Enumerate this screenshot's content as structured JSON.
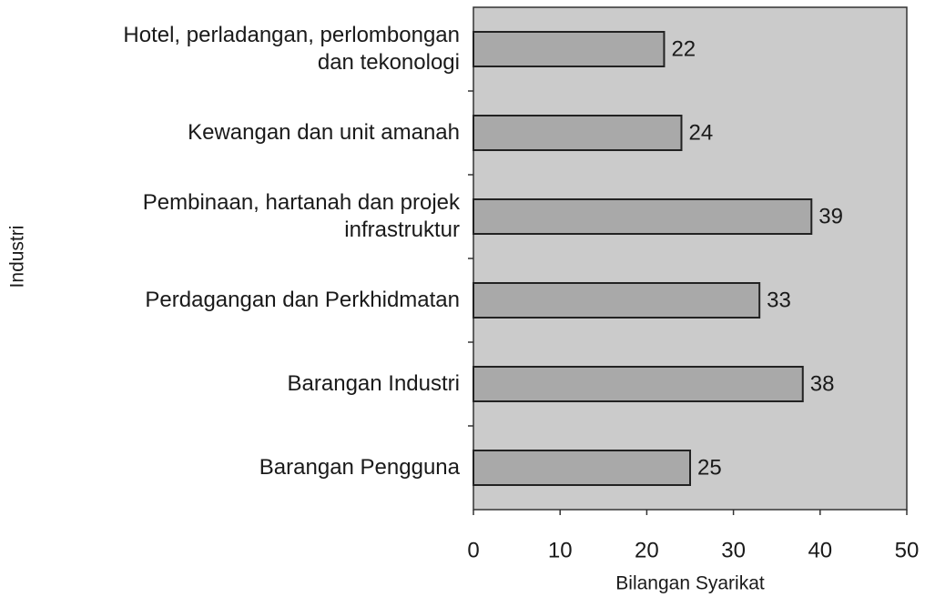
{
  "chart_data": {
    "type": "barh",
    "categories": [
      "Hotel, perladangan, perlombongan\ndan tekonologi",
      "Kewangan dan unit amanah",
      "Pembinaan, hartanah dan projek\ninfrastruktur",
      "Perdagangan dan Perkhidmatan",
      "Barangan Industri",
      "Barangan Pengguna"
    ],
    "values": [
      22,
      24,
      39,
      33,
      38,
      25
    ],
    "color": "#a9a9a9",
    "xlim": [
      0,
      50
    ],
    "xticks": [
      0,
      10,
      20,
      30,
      40,
      50
    ],
    "x_label": "Bilangan Syarikat",
    "y_label": "Industri",
    "grid": false
  }
}
